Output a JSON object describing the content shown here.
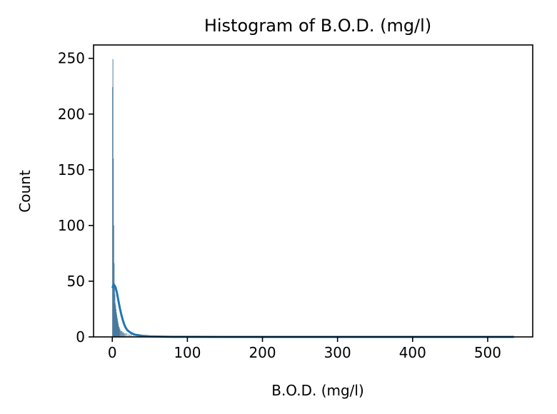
{
  "chart_data": {
    "type": "bar",
    "title": "Histogram of B.O.D. (mg/l)",
    "xlabel": "B.O.D. (mg/l)",
    "ylabel": "Count",
    "xlim": [
      -25,
      560
    ],
    "ylim": [
      0,
      262
    ],
    "xticks": [
      0,
      100,
      200,
      300,
      400,
      500
    ],
    "yticks": [
      0,
      50,
      100,
      150,
      200,
      250
    ],
    "grid": false,
    "bar_color": "#1f77b4",
    "bar_opacity": 0.55,
    "kde_color": "#1f77b4",
    "histogram": {
      "bin_width": 0.5,
      "bins": [
        {
          "x": 0.2,
          "count": 224
        },
        {
          "x": 0.7,
          "count": 249
        },
        {
          "x": 1.2,
          "count": 160
        },
        {
          "x": 1.7,
          "count": 100
        },
        {
          "x": 2.2,
          "count": 66
        },
        {
          "x": 2.7,
          "count": 45
        },
        {
          "x": 3.2,
          "count": 38
        },
        {
          "x": 3.7,
          "count": 30
        },
        {
          "x": 4.2,
          "count": 28
        },
        {
          "x": 4.7,
          "count": 25
        },
        {
          "x": 5.2,
          "count": 22
        },
        {
          "x": 5.7,
          "count": 20
        },
        {
          "x": 6.2,
          "count": 18
        },
        {
          "x": 6.7,
          "count": 16
        },
        {
          "x": 7.2,
          "count": 14
        },
        {
          "x": 7.7,
          "count": 12
        },
        {
          "x": 8.2,
          "count": 10
        },
        {
          "x": 8.7,
          "count": 9
        },
        {
          "x": 9.2,
          "count": 8
        },
        {
          "x": 9.7,
          "count": 7
        },
        {
          "x": 10.5,
          "count": 6
        },
        {
          "x": 11.5,
          "count": 5
        },
        {
          "x": 12.5,
          "count": 5
        },
        {
          "x": 13.5,
          "count": 4
        },
        {
          "x": 14.5,
          "count": 4
        },
        {
          "x": 15.5,
          "count": 3
        },
        {
          "x": 17,
          "count": 3
        },
        {
          "x": 19,
          "count": 3
        },
        {
          "x": 21,
          "count": 2
        },
        {
          "x": 23,
          "count": 2
        },
        {
          "x": 25,
          "count": 2
        },
        {
          "x": 28,
          "count": 1
        },
        {
          "x": 32,
          "count": 1
        },
        {
          "x": 36,
          "count": 1
        },
        {
          "x": 40,
          "count": 1
        }
      ]
    },
    "kde": {
      "x": [
        0,
        2,
        4,
        6,
        8,
        10,
        12,
        14,
        16,
        18,
        20,
        25,
        30,
        40,
        50,
        60,
        80,
        100,
        150,
        200,
        300,
        400,
        500,
        535
      ],
      "y": [
        44,
        47,
        45,
        40,
        33,
        26,
        20,
        15,
        11,
        8,
        6,
        3.5,
        2,
        1,
        0.5,
        0.3,
        0.1,
        0.05,
        0,
        0,
        0,
        0,
        0,
        0
      ]
    }
  }
}
